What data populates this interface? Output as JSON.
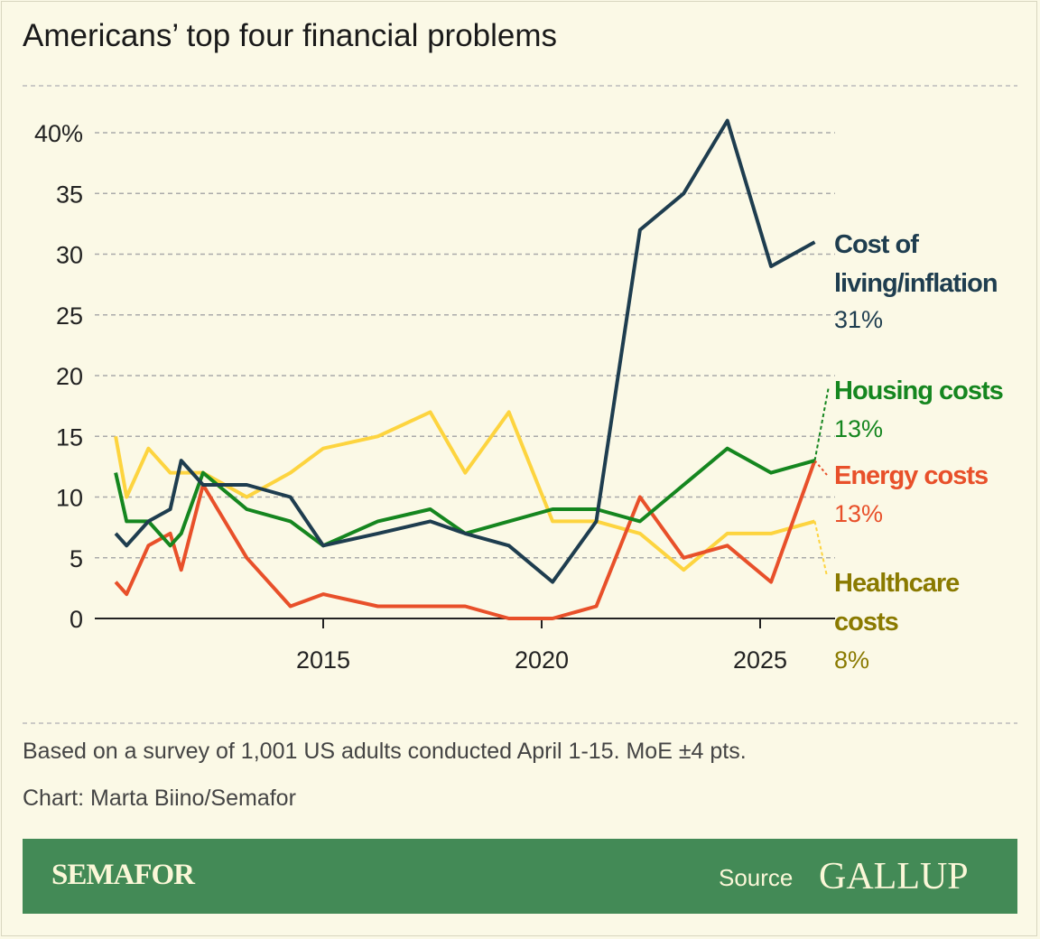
{
  "chart_data": {
    "type": "line",
    "title": "Americans’ top four financial problems",
    "xlabel": "",
    "ylabel": "",
    "xticks": [
      "2015",
      "2020",
      "2025"
    ],
    "yticks": [
      "0",
      "5",
      "10",
      "15",
      "20",
      "25",
      "30",
      "35",
      "40%"
    ],
    "ylim": [
      0,
      40
    ],
    "grid": "horizontal dashed",
    "x": [
      2010.25,
      2010.5,
      2011.0,
      2011.5,
      2011.75,
      2012.25,
      2013.25,
      2014.25,
      2015.0,
      2016.25,
      2017.45,
      2018.25,
      2019.25,
      2020.25,
      2021.25,
      2022.25,
      2023.25,
      2024.25,
      2025.25,
      2026.25
    ],
    "series": [
      {
        "name": "Cost of living/inflation",
        "end_label": "31%",
        "color": "#1e3d4f",
        "values": [
          7,
          6,
          8,
          9,
          13,
          11,
          11,
          10,
          6,
          7,
          8,
          7,
          6,
          3,
          8,
          32,
          35,
          41,
          29,
          31
        ]
      },
      {
        "name": "Housing costs",
        "end_label": "13%",
        "color": "#15861f",
        "values": [
          12,
          8,
          8,
          6,
          7,
          12,
          9,
          8,
          6,
          8,
          9,
          7,
          8,
          9,
          9,
          8,
          11,
          14,
          12,
          13
        ]
      },
      {
        "name": "Energy costs",
        "end_label": "13%",
        "color": "#e8502a",
        "values": [
          3,
          2,
          6,
          7,
          4,
          11,
          5,
          1,
          2,
          1,
          1,
          1,
          0,
          0,
          1,
          10,
          5,
          6,
          3,
          13
        ]
      },
      {
        "name": "Healthcare costs",
        "end_label": "8%",
        "color": "#fdd43f",
        "label_color": "#8a7a00",
        "values": [
          15,
          10,
          14,
          12,
          12,
          12,
          10,
          12,
          14,
          15,
          17,
          12,
          17,
          8,
          8,
          7,
          4,
          7,
          7,
          8
        ]
      }
    ]
  },
  "note": "Based on a survey of 1,001 US adults conducted April 1-15. MoE ±4 pts.",
  "credit": "Chart: Marta Biino/Semafor",
  "footer": {
    "brand": "SEMAFOR",
    "source_label": "Source",
    "source_name": "GALLUP",
    "background": "#438a56"
  }
}
